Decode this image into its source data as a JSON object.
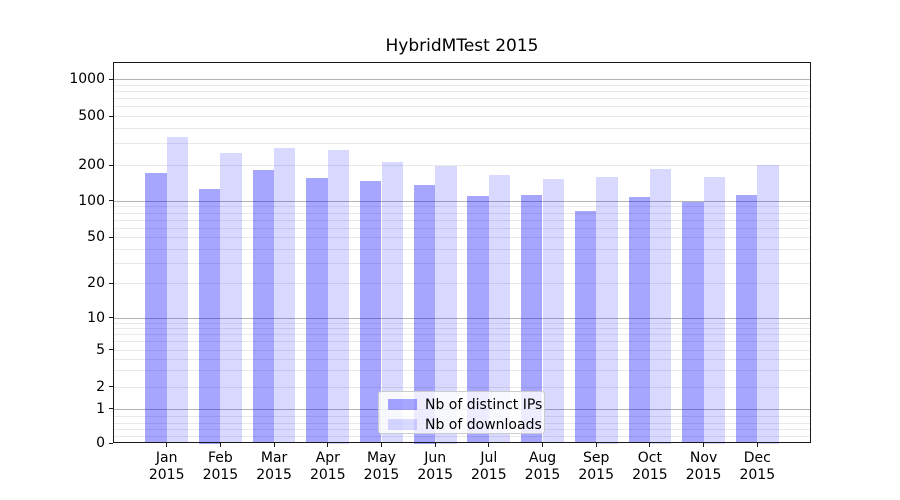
{
  "figure": {
    "title": "HybridMTest 2015"
  },
  "legend": {
    "items": [
      {
        "id": "distinct-ips",
        "label": "Nb of distinct IPs",
        "color_key": "distinct_ips"
      },
      {
        "id": "downloads",
        "label": "Nb of downloads",
        "color_key": "downloads"
      }
    ]
  },
  "colors": {
    "distinct_ips": "rgba(0,0,255,0.35)",
    "downloads": "rgba(0,0,255,0.15)",
    "grid_major": "#b4b4b4",
    "grid_minor": "#e9e9e9",
    "spine": "#1a1a1a"
  },
  "chart_data": {
    "type": "bar",
    "title": "HybridMTest 2015",
    "categories": [
      "Jan 2015",
      "Feb 2015",
      "Mar 2015",
      "Apr 2015",
      "May 2015",
      "Jun 2015",
      "Jul 2015",
      "Aug 2015",
      "Sep 2015",
      "Oct 2015",
      "Nov 2015",
      "Dec 2015"
    ],
    "series": [
      {
        "name": "Nb of distinct IPs",
        "values": [
          172,
          127,
          180,
          155,
          146,
          137,
          110,
          112,
          83,
          107,
          97,
          112
        ]
      },
      {
        "name": "Nb of downloads",
        "values": [
          340,
          250,
          277,
          267,
          212,
          198,
          164,
          153,
          160,
          185,
          160,
          200
        ]
      }
    ],
    "xlabel": "",
    "ylabel": "",
    "y_scale": "asinh-like log scale (compressed near zero)",
    "y_ticks": [
      0,
      1,
      2,
      5,
      10,
      20,
      50,
      100,
      200,
      500,
      1000
    ],
    "y_tick_labels": [
      "0",
      "1",
      "2",
      "5",
      "10",
      "20",
      "50",
      "100",
      "200",
      "500",
      "1000"
    ],
    "ylim": [
      0,
      1400
    ],
    "grid": "horizontal major and minor gridlines",
    "legend_position": "lower center"
  }
}
